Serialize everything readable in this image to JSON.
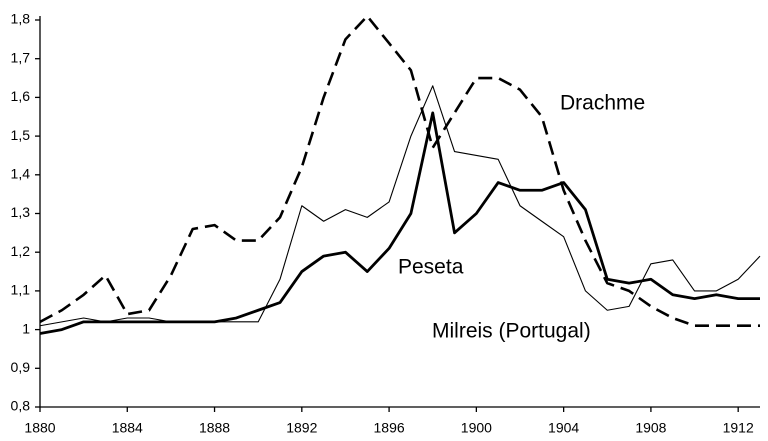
{
  "chart_data": {
    "type": "line",
    "x": [
      1880,
      1881,
      1882,
      1883,
      1884,
      1885,
      1886,
      1887,
      1888,
      1889,
      1890,
      1891,
      1892,
      1893,
      1894,
      1895,
      1896,
      1897,
      1898,
      1899,
      1900,
      1901,
      1902,
      1903,
      1904,
      1905,
      1906,
      1907,
      1908,
      1909,
      1910,
      1911,
      1912,
      1913
    ],
    "series": [
      {
        "name": "Drachme",
        "color": "#000000",
        "style": "dashed",
        "width": 2.6,
        "values": [
          1.02,
          1.05,
          1.09,
          1.14,
          1.04,
          1.05,
          1.14,
          1.26,
          1.27,
          1.23,
          1.23,
          1.29,
          1.42,
          1.6,
          1.75,
          1.81,
          1.74,
          1.67,
          1.47,
          1.56,
          1.65,
          1.65,
          1.62,
          1.55,
          1.36,
          1.23,
          1.12,
          1.1,
          1.06,
          1.03,
          1.01,
          1.01,
          1.01,
          1.01
        ]
      },
      {
        "name": "Peseta",
        "color": "#000000",
        "style": "solid",
        "width": 2.8,
        "values": [
          0.99,
          1.0,
          1.02,
          1.02,
          1.02,
          1.02,
          1.02,
          1.02,
          1.02,
          1.03,
          1.05,
          1.07,
          1.15,
          1.19,
          1.2,
          1.15,
          1.21,
          1.3,
          1.56,
          1.25,
          1.3,
          1.38,
          1.36,
          1.36,
          1.38,
          1.31,
          1.13,
          1.12,
          1.13,
          1.09,
          1.08,
          1.09,
          1.08,
          1.08
        ]
      },
      {
        "name": "Milreis (Portugal)",
        "color": "#000000",
        "style": "solid",
        "width": 1.1,
        "values": [
          1.01,
          1.02,
          1.03,
          1.02,
          1.03,
          1.03,
          1.02,
          1.02,
          1.02,
          1.02,
          1.02,
          1.13,
          1.32,
          1.28,
          1.31,
          1.29,
          1.33,
          1.5,
          1.63,
          1.46,
          1.45,
          1.44,
          1.32,
          1.28,
          1.24,
          1.1,
          1.05,
          1.06,
          1.17,
          1.18,
          1.1,
          1.1,
          1.13,
          1.19
        ]
      }
    ],
    "xlim": [
      1880,
      1913
    ],
    "xticks": [
      1880,
      1884,
      1888,
      1892,
      1896,
      1900,
      1904,
      1908,
      1912
    ],
    "ylim": [
      0.8,
      1.8
    ],
    "yticks": [
      {
        "value": 0.8,
        "label": "0,8"
      },
      {
        "value": 0.9,
        "label": "0,9"
      },
      {
        "value": 1,
        "label": "1"
      },
      {
        "value": 1.1,
        "label": "1,1"
      },
      {
        "value": 1.2,
        "label": "1,2"
      },
      {
        "value": 1.3,
        "label": "1,3"
      },
      {
        "value": 1.4,
        "label": "1,4"
      },
      {
        "value": 1.5,
        "label": "1,5"
      },
      {
        "value": 1.6,
        "label": "1,6"
      },
      {
        "value": 1.7,
        "label": "1,7"
      },
      {
        "value": 1.8,
        "label": "1,8"
      }
    ],
    "grid": false
  }
}
